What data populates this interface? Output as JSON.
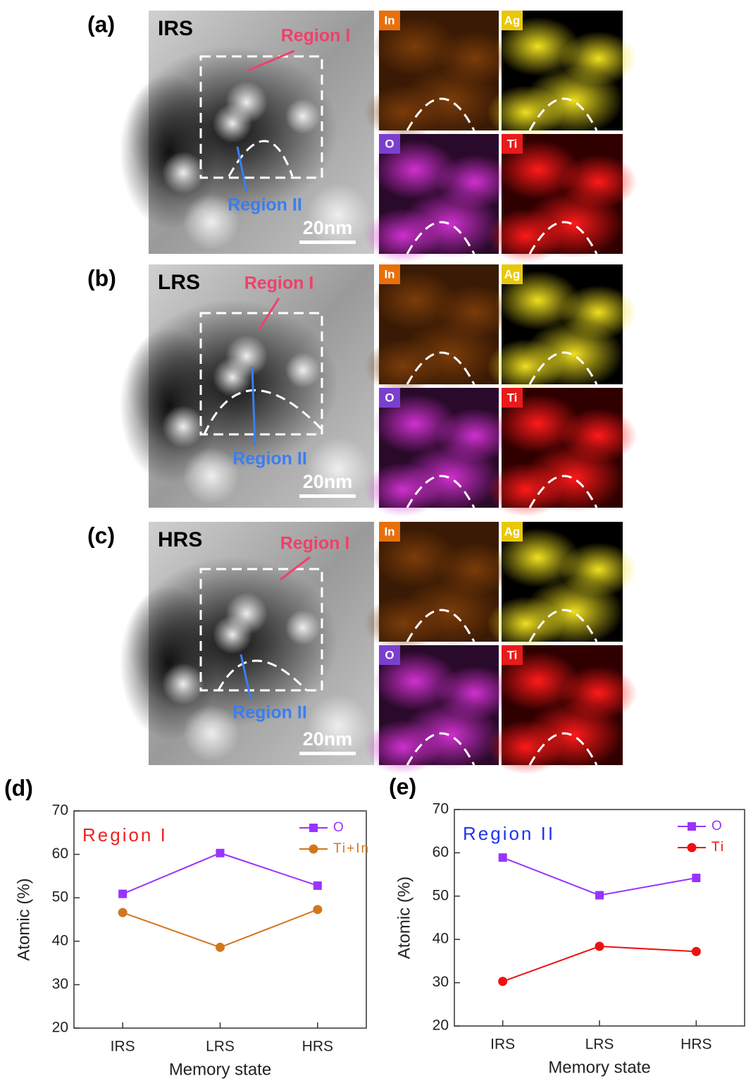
{
  "panels": [
    {
      "label": "(a)",
      "state": "IRS",
      "region1": "Region I",
      "region2": "Region II",
      "scale": "20nm",
      "maps": [
        "In",
        "Ag",
        "O",
        "Ti"
      ]
    },
    {
      "label": "(b)",
      "state": "LRS",
      "region1": "Region I",
      "region2": "Region II",
      "scale": "20nm",
      "maps": [
        "In",
        "Ag",
        "O",
        "Ti"
      ]
    },
    {
      "label": "(c)",
      "state": "HRS",
      "region1": "Region I",
      "region2": "Region II",
      "scale": "20nm",
      "maps": [
        "In",
        "Ag",
        "O",
        "Ti"
      ]
    }
  ],
  "chart_data": [
    {
      "type": "line",
      "title": "(d)",
      "annotation": "Region I",
      "annotation_color": "#ee2222",
      "x_label": "Memory state",
      "y_label": "Atomic (%)",
      "categories": [
        "IRS",
        "LRS",
        "HRS"
      ],
      "ylim": [
        20,
        70
      ],
      "yticks": [
        20,
        30,
        40,
        50,
        60,
        70
      ],
      "legend": "upper right",
      "series": [
        {
          "name": "O",
          "color": "#9933ff",
          "marker": "square",
          "values": [
            50.9,
            60.3,
            52.8
          ]
        },
        {
          "name": "Ti+In",
          "color": "#d2761e",
          "marker": "circle",
          "values": [
            46.6,
            38.6,
            47.3
          ]
        }
      ]
    },
    {
      "type": "line",
      "title": "(e)",
      "annotation": "Region II",
      "annotation_color": "#2233ee",
      "x_label": "Memory state",
      "y_label": "Atomic (%)",
      "categories": [
        "IRS",
        "LRS",
        "HRS"
      ],
      "ylim": [
        20,
        70
      ],
      "yticks": [
        20,
        30,
        40,
        50,
        60,
        70
      ],
      "legend": "upper right",
      "series": [
        {
          "name": "O",
          "color": "#9933ff",
          "marker": "square",
          "values": [
            58.9,
            50.2,
            54.2
          ]
        },
        {
          "name": "Ti",
          "color": "#ee1111",
          "marker": "circle",
          "values": [
            30.3,
            38.4,
            37.2
          ]
        }
      ]
    }
  ]
}
